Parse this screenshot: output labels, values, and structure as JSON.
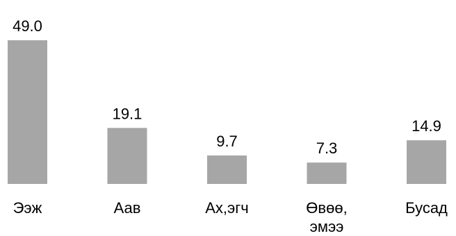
{
  "chart_data": {
    "type": "bar",
    "categories": [
      "Ээж",
      "Аав",
      "Ах,эгч",
      "Өвөө, эмээ",
      "Бусад"
    ],
    "category_lines": [
      [
        "Ээж"
      ],
      [
        "Аав"
      ],
      [
        "Ах,эгч"
      ],
      [
        "Өвөө,",
        "эмээ"
      ],
      [
        "Бусад"
      ]
    ],
    "values": [
      49.0,
      19.1,
      9.7,
      7.3,
      14.9
    ],
    "value_labels": [
      "49.0",
      "19.1",
      "9.7",
      "7.3",
      "14.9"
    ],
    "bar_color": "#a6a6a6",
    "grid": false,
    "legend": "none",
    "ylim": [
      0,
      49.0
    ]
  }
}
